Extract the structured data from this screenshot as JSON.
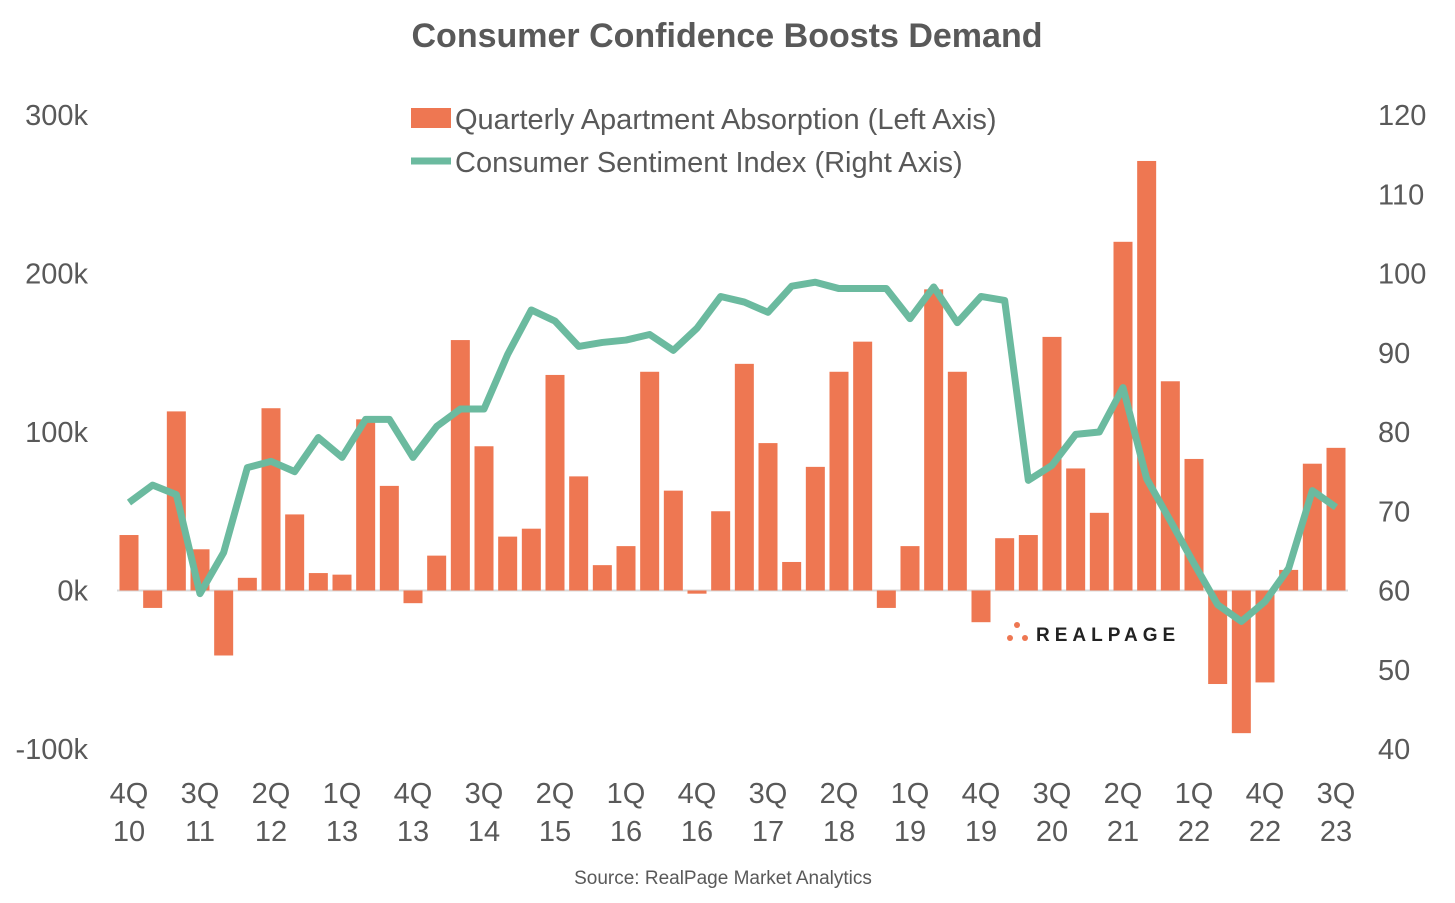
{
  "chart_data": {
    "type": "bar+line",
    "title": "Consumer Confidence Boosts Demand",
    "source": "Source: RealPage Market Analytics",
    "logo": "REALPAGE",
    "legend_position": "top-center",
    "grid": false,
    "colors": {
      "bars": "#EE7752",
      "line": "#6BBA9F",
      "text": "#595959",
      "zero_line": "#D9D9D9"
    },
    "left_axis": {
      "ylim": [
        -100000,
        300000
      ],
      "ticks": [
        300000,
        200000,
        100000,
        0,
        -100000
      ],
      "tick_labels": [
        "300k",
        "200k",
        "100k",
        "0k",
        "-100k"
      ]
    },
    "right_axis": {
      "ylim": [
        40,
        120
      ],
      "ticks": [
        120,
        110,
        100,
        90,
        80,
        70,
        60,
        50,
        40
      ],
      "tick_labels": [
        "120",
        "110",
        "100",
        "90",
        "80",
        "70",
        "60",
        "50",
        "40"
      ]
    },
    "x_tick_labels": [
      [
        "4Q",
        "10"
      ],
      [
        "3Q",
        "11"
      ],
      [
        "2Q",
        "12"
      ],
      [
        "1Q",
        "13"
      ],
      [
        "4Q",
        "13"
      ],
      [
        "3Q",
        "14"
      ],
      [
        "2Q",
        "15"
      ],
      [
        "1Q",
        "16"
      ],
      [
        "4Q",
        "16"
      ],
      [
        "3Q",
        "17"
      ],
      [
        "2Q",
        "18"
      ],
      [
        "1Q",
        "19"
      ],
      [
        "4Q",
        "19"
      ],
      [
        "3Q",
        "20"
      ],
      [
        "2Q",
        "21"
      ],
      [
        "1Q",
        "22"
      ],
      [
        "4Q",
        "22"
      ],
      [
        "3Q",
        "23"
      ]
    ],
    "categories": [
      "4Q10",
      "1Q11",
      "2Q11",
      "3Q11",
      "4Q11",
      "1Q12",
      "2Q12",
      "3Q12",
      "4Q12",
      "1Q13",
      "2Q13",
      "3Q13",
      "4Q13",
      "1Q14",
      "2Q14",
      "3Q14",
      "4Q14",
      "1Q15",
      "2Q15",
      "3Q15",
      "4Q15",
      "1Q16",
      "2Q16",
      "3Q16",
      "4Q16",
      "1Q17",
      "2Q17",
      "3Q17",
      "4Q17",
      "1Q18",
      "2Q18",
      "3Q18",
      "4Q18",
      "1Q19",
      "2Q19",
      "3Q19",
      "4Q19",
      "1Q20",
      "2Q20",
      "3Q20",
      "4Q20",
      "1Q21",
      "2Q21",
      "3Q21",
      "4Q21",
      "1Q22",
      "2Q22",
      "3Q22",
      "4Q22",
      "1Q23",
      "2Q23",
      "3Q23"
    ],
    "series": [
      {
        "name": "Quarterly Apartment Absorption (Left Axis)",
        "type": "bar",
        "axis": "left",
        "values": [
          35000,
          -11000,
          113000,
          26000,
          -41000,
          8000,
          115000,
          48000,
          11000,
          10000,
          108000,
          66000,
          -8000,
          22000,
          158000,
          91000,
          34000,
          39000,
          136000,
          72000,
          16000,
          28000,
          138000,
          63000,
          -2000,
          50000,
          143000,
          93000,
          18000,
          78000,
          138000,
          157000,
          -11000,
          28000,
          190000,
          138000,
          -20000,
          33000,
          35000,
          160000,
          77000,
          49000,
          220000,
          271000,
          132000,
          83000,
          -59000,
          -90000,
          -58000,
          13000,
          80000,
          90000
        ]
      },
      {
        "name": "Consumer Sentiment Index (Right Axis)",
        "type": "line",
        "axis": "right",
        "values": [
          71.1,
          73.3,
          72.1,
          59.6,
          64.8,
          75.5,
          76.3,
          75.0,
          79.3,
          76.8,
          81.6,
          81.6,
          76.8,
          80.7,
          82.9,
          82.9,
          89.8,
          95.4,
          94.0,
          90.8,
          91.3,
          91.6,
          92.3,
          90.3,
          93.1,
          97.1,
          96.4,
          95.1,
          98.4,
          98.9,
          98.1,
          98.1,
          98.1,
          94.3,
          98.3,
          93.8,
          97.1,
          96.6,
          73.9,
          75.8,
          79.7,
          80.0,
          85.6,
          74.1,
          68.8,
          63.4,
          58.2,
          56.1,
          58.6,
          62.8,
          72.6,
          70.5
        ]
      }
    ]
  }
}
